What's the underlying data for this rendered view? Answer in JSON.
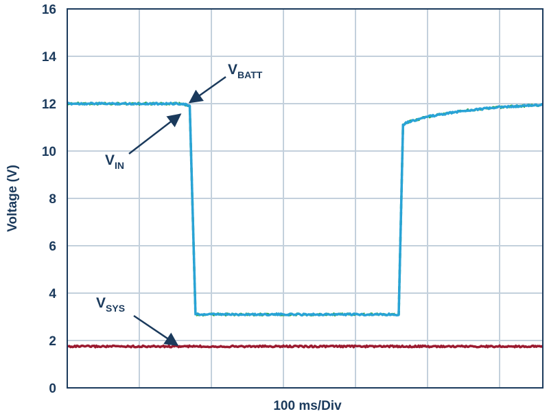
{
  "chart_data": {
    "type": "line",
    "title": "",
    "xlabel": "100 ms/Div",
    "ylabel": "Voltage (V)",
    "xlim": [
      0,
      6.6
    ],
    "ylim": [
      0,
      16
    ],
    "yticks": [
      {
        "value": 0,
        "label": "0"
      },
      {
        "value": 2,
        "label": "2"
      },
      {
        "value": 4,
        "label": "4"
      },
      {
        "value": 6,
        "label": "6"
      },
      {
        "value": 8,
        "label": "8"
      },
      {
        "value": 10,
        "label": "10"
      },
      {
        "value": 12,
        "label": "12"
      },
      {
        "value": 14,
        "label": "14"
      },
      {
        "value": 16,
        "label": "16"
      }
    ],
    "x_divisions": 6.6,
    "grid": true,
    "series": [
      {
        "name": "VBATT",
        "color": "#2ba84a",
        "dash": true,
        "x": [
          0,
          1.6,
          1.7,
          1.78,
          4.6,
          4.66,
          4.7,
          5.0,
          5.5,
          6.0,
          6.6
        ],
        "y": [
          12.0,
          12.0,
          11.9,
          3.1,
          3.1,
          11.1,
          11.2,
          11.45,
          11.7,
          11.85,
          11.95
        ]
      },
      {
        "name": "VIN",
        "color": "#29a3d6",
        "dash": false,
        "x": [
          0,
          1.6,
          1.7,
          1.78,
          4.6,
          4.66,
          4.7,
          5.0,
          5.5,
          6.0,
          6.6
        ],
        "y": [
          12.0,
          12.0,
          11.9,
          3.1,
          3.1,
          11.1,
          11.2,
          11.45,
          11.7,
          11.85,
          11.95
        ]
      },
      {
        "name": "VSYS",
        "color": "#9b1b30",
        "dash": false,
        "x": [
          0,
          6.6
        ],
        "y": [
          1.75,
          1.75
        ]
      }
    ],
    "annotations": [
      {
        "main": "V",
        "sub": "BATT",
        "tip": [
          1.7,
          12.05
        ]
      },
      {
        "main": "V",
        "sub": "IN",
        "tip": [
          1.57,
          11.55
        ]
      },
      {
        "main": "V",
        "sub": "SYS",
        "tip": [
          1.53,
          1.8
        ]
      }
    ]
  }
}
